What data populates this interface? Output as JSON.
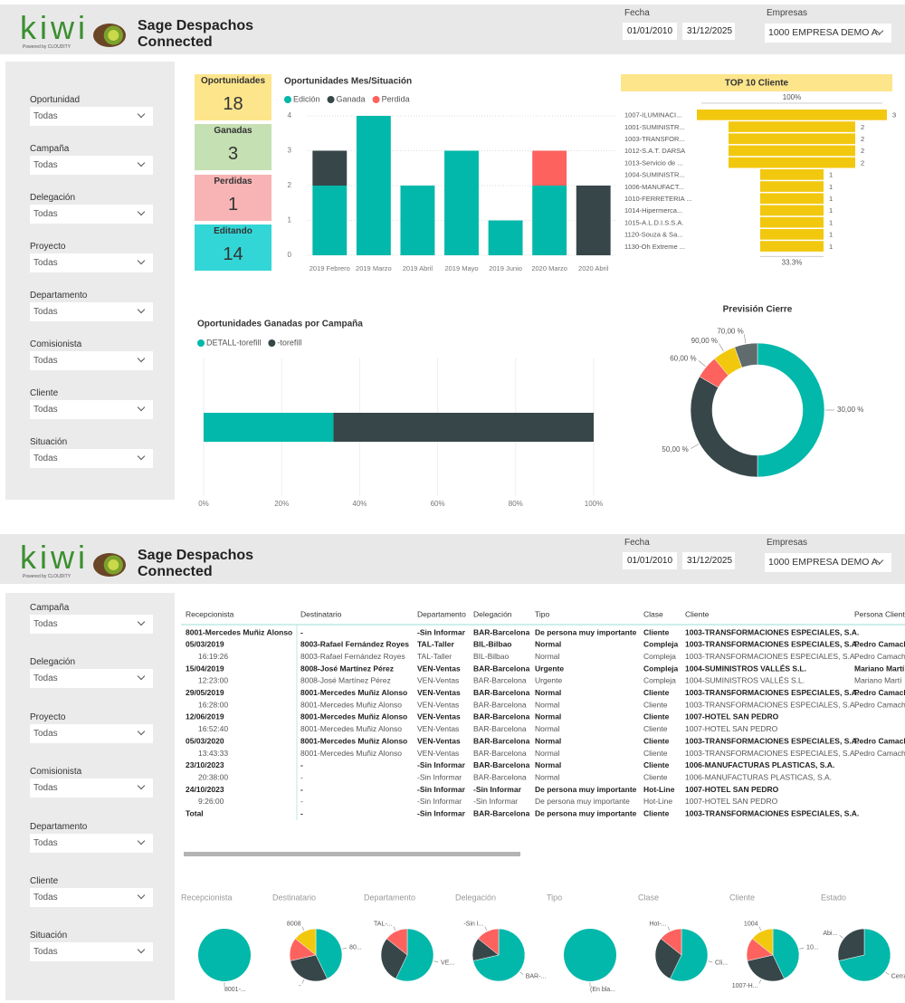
{
  "header": {
    "logo": "kiwi",
    "tagline": "Powered by CLOUDITY",
    "title": "Sage Despachos Connected",
    "date_label": "Fecha",
    "date_from": "01/01/2010",
    "date_to": "31/12/2025",
    "company_label": "Empresas",
    "company": "1000 EMPRESA DEMO A..."
  },
  "dashboard": {
    "filters": [
      {
        "label": "Oportunidad",
        "value": "Todas"
      },
      {
        "label": "Campaña",
        "value": "Todas"
      },
      {
        "label": "Delegación",
        "value": "Todas"
      },
      {
        "label": "Proyecto",
        "value": "Todas"
      },
      {
        "label": "Departamento",
        "value": "Todas"
      },
      {
        "label": "Comisionista",
        "value": "Todas"
      },
      {
        "label": "Cliente",
        "value": "Todas"
      },
      {
        "label": "Situación",
        "value": "Todas"
      }
    ],
    "kpis": [
      {
        "label": "Oportunidades",
        "value": 18,
        "color": "#fde58c"
      },
      {
        "label": "Ganadas",
        "value": 3,
        "color": "#c5e0b3"
      },
      {
        "label": "Perdidas",
        "value": 1,
        "color": "#f8b4b4"
      },
      {
        "label": "Editando",
        "value": 14,
        "color": "#33d6d6"
      }
    ]
  },
  "report": {
    "filters": [
      {
        "label": "Campaña",
        "value": "Todas"
      },
      {
        "label": "Delegación",
        "value": "Todas"
      },
      {
        "label": "Proyecto",
        "value": "Todas"
      },
      {
        "label": "Comisionista",
        "value": "Todas"
      },
      {
        "label": "Departamento",
        "value": "Todas"
      },
      {
        "label": "Cliente",
        "value": "Todas"
      },
      {
        "label": "Situación",
        "value": "Todas"
      }
    ],
    "table": {
      "columns": [
        "Recepcionista",
        "Destinatario",
        "Departamento",
        "Delegación",
        "Tipo",
        "Clase",
        "Cliente",
        "Persona Cliente"
      ],
      "rows": [
        {
          "bold": true,
          "cells": [
            "8001-Mercedes Muñiz Alonso",
            "-",
            "-Sin Informar",
            "BAR-Barcelona",
            "De persona muy importante",
            "Cliente",
            "1003-TRANSFORMACIONES ESPECIALES, S.A.",
            null
          ]
        },
        {
          "bold": true,
          "cells": [
            "05/03/2019",
            "8003-Rafael Fernández Royes",
            "TAL-Taller",
            "BIL-Bilbao",
            "Normal",
            "Compleja",
            "1003-TRANSFORMACIONES ESPECIALES, S.A.",
            "Pedro Camacho"
          ]
        },
        {
          "bold": false,
          "cells": [
            "16:19:26",
            "8003-Rafael Fernández Royes",
            "TAL-Taller",
            "BIL-Bilbao",
            "Normal",
            "Compleja",
            "1003-TRANSFORMACIONES ESPECIALES, S.A.",
            "Pedro Camacho"
          ]
        },
        {
          "bold": true,
          "cells": [
            "15/04/2019",
            "8008-José Martínez Pérez",
            "VEN-Ventas",
            "BAR-Barcelona",
            "Urgente",
            "Compleja",
            "1004-SUMINISTROS VALLÉS S.L.",
            "Mariano Martí"
          ]
        },
        {
          "bold": false,
          "cells": [
            "12:23:00",
            "8008-José Martínez Pérez",
            "VEN-Ventas",
            "BAR-Barcelona",
            "Urgente",
            "Compleja",
            "1004-SUMINISTROS VALLÉS S.L.",
            "Mariano Martí"
          ]
        },
        {
          "bold": true,
          "cells": [
            "29/05/2019",
            "8001-Mercedes Muñiz Alonso",
            "VEN-Ventas",
            "BAR-Barcelona",
            "Normal",
            "Cliente",
            "1003-TRANSFORMACIONES ESPECIALES, S.A.",
            "Pedro Camacho"
          ]
        },
        {
          "bold": false,
          "cells": [
            "16:28:00",
            "8001-Mercedes Muñiz Alonso",
            "VEN-Ventas",
            "BAR-Barcelona",
            "Normal",
            "Cliente",
            "1003-TRANSFORMACIONES ESPECIALES, S.A.",
            "Pedro Camacho"
          ]
        },
        {
          "bold": true,
          "cells": [
            "12/06/2019",
            "8001-Mercedes Muñiz Alonso",
            "VEN-Ventas",
            "BAR-Barcelona",
            "Normal",
            "Cliente",
            "1007-HOTEL SAN PEDRO",
            null
          ]
        },
        {
          "bold": false,
          "cells": [
            "16:52:40",
            "8001-Mercedes Muñiz Alonso",
            "VEN-Ventas",
            "BAR-Barcelona",
            "Normal",
            "Cliente",
            "1007-HOTEL SAN PEDRO",
            null
          ]
        },
        {
          "bold": true,
          "cells": [
            "05/03/2020",
            "8001-Mercedes Muñiz Alonso",
            "VEN-Ventas",
            "BAR-Barcelona",
            "Normal",
            "Cliente",
            "1003-TRANSFORMACIONES ESPECIALES, S.A.",
            "Pedro Camacho"
          ]
        },
        {
          "bold": false,
          "cells": [
            "13:43:33",
            "8001-Mercedes Muñiz Alonso",
            "VEN-Ventas",
            "BAR-Barcelona",
            "Normal",
            "Cliente",
            "1003-TRANSFORMACIONES ESPECIALES, S.A.",
            "Pedro Camacho"
          ]
        },
        {
          "bold": true,
          "cells": [
            "23/10/2023",
            "-",
            "-Sin Informar",
            "BAR-Barcelona",
            "Normal",
            "Cliente",
            "1006-MANUFACTURAS PLASTICAS, S.A.",
            null
          ]
        },
        {
          "bold": false,
          "cells": [
            "20:38:00",
            "-",
            "-Sin Informar",
            "BAR-Barcelona",
            "Normal",
            "Cliente",
            "1006-MANUFACTURAS PLASTICAS, S.A.",
            null
          ]
        },
        {
          "bold": true,
          "cells": [
            "24/10/2023",
            "-",
            "-Sin Informar",
            "-Sin Informar",
            "De persona muy importante",
            "Hot-Line",
            "1007-HOTEL SAN PEDRO",
            null
          ]
        },
        {
          "bold": false,
          "cells": [
            "9:26:00",
            "-",
            "-Sin Informar",
            "-Sin Informar",
            "De persona muy importante",
            "Hot-Line",
            "1007-HOTEL SAN PEDRO",
            null
          ]
        },
        {
          "bold": true,
          "cells": [
            "Total",
            "-",
            "-Sin Informar",
            "BAR-Barcelona",
            "De persona muy importante",
            "Cliente",
            "1003-TRANSFORMACIONES ESPECIALES, S.A.",
            null
          ]
        }
      ]
    }
  },
  "chart_data": [
    {
      "type": "bar",
      "stacked": true,
      "title": "Oportunidades Mes/Situación",
      "categories": [
        "2019 Febrero",
        "2019 Marzo",
        "2019 Abril",
        "2019 Mayo",
        "2019 Junio",
        "2020 Marzo",
        "2020 Abril"
      ],
      "series": [
        {
          "name": "Edición",
          "color": "#01b8aa",
          "values": [
            2,
            4,
            2,
            3,
            1,
            2,
            0
          ]
        },
        {
          "name": "Ganada",
          "color": "#374649",
          "values": [
            1,
            0,
            0,
            0,
            0,
            0,
            2
          ]
        },
        {
          "name": "Perdida",
          "color": "#fd625e",
          "values": [
            0,
            0,
            0,
            0,
            0,
            1,
            0
          ]
        }
      ],
      "ylim": [
        0,
        4
      ],
      "yticks": [
        0,
        1,
        2,
        3,
        4
      ],
      "grid": true
    },
    {
      "type": "funnel",
      "title": "TOP 10 Cliente",
      "color": "#f2c80f",
      "header_color": "#fde58c",
      "categories": [
        "1007-ILUMINACI...",
        "1001-SUMINISTR...",
        "1003-TRANSFOR...",
        "1012-S.A.T. DARSA",
        "1013-Servicio de ...",
        "1004-SUMINISTR...",
        "1006-MANUFACT...",
        "1010-FERRETERIA ...",
        "1014-Hipermerca...",
        "1015-A.L.D.I.S.S.A.",
        "1120-Souza & Sa...",
        "1130-Oh Extreme ..."
      ],
      "values": [
        3,
        2,
        2,
        2,
        2,
        1,
        1,
        1,
        1,
        1,
        1,
        1
      ],
      "top_label": "100%",
      "bottom_label": "33.3%"
    },
    {
      "type": "bar",
      "orientation": "horizontal",
      "stacked": true,
      "title": "Oportunidades Ganadas por Campaña",
      "categories": [
        null
      ],
      "series": [
        {
          "name": "DETALL-torefill",
          "color": "#01b8aa",
          "values": [
            33.3
          ]
        },
        {
          "name": "-torefill",
          "color": "#374649",
          "values": [
            66.7
          ]
        }
      ],
      "xlim": [
        0,
        100
      ],
      "xticks": [
        {
          "value": 0,
          "label": "0%"
        },
        {
          "value": 20,
          "label": "20%"
        },
        {
          "value": 40,
          "label": "40%"
        },
        {
          "value": 60,
          "label": "60%"
        },
        {
          "value": 80,
          "label": "80%"
        },
        {
          "value": 100,
          "label": "100%"
        }
      ],
      "grid": true
    },
    {
      "type": "pie",
      "donut": true,
      "title": "Previsión Cierre",
      "categories": [
        "30,00 %",
        "50,00 %",
        "60,00 %",
        "90,00 %",
        "70,00 %"
      ],
      "values": [
        9,
        6,
        1,
        1,
        1
      ],
      "colors": [
        "#01b8aa",
        "#374649",
        "#fd625e",
        "#f2c80f",
        "#5f6b6d"
      ]
    },
    {
      "type": "pie",
      "title": "Recepcionista",
      "categories": [
        "8001-..."
      ],
      "values": [
        7
      ],
      "colors": [
        "#01b8aa"
      ]
    },
    {
      "type": "pie",
      "title": "Destinatario",
      "categories": [
        "80...",
        "-",
        null,
        "8008"
      ],
      "values": [
        3,
        2,
        1,
        1
      ],
      "colors": [
        "#01b8aa",
        "#374649",
        "#fd625e",
        "#f2c80f"
      ]
    },
    {
      "type": "pie",
      "title": "Departamento",
      "categories": [
        "VE...",
        null,
        "TAL-..."
      ],
      "values": [
        4,
        2,
        1
      ],
      "colors": [
        "#01b8aa",
        "#374649",
        "#fd625e"
      ]
    },
    {
      "type": "pie",
      "title": "Delegación",
      "categories": [
        "BAR-...",
        null,
        "-Sin I..."
      ],
      "values": [
        5,
        1,
        1
      ],
      "colors": [
        "#01b8aa",
        "#374649",
        "#fd625e"
      ]
    },
    {
      "type": "pie",
      "title": "Tipo",
      "categories": [
        "(En bla..."
      ],
      "values": [
        7
      ],
      "colors": [
        "#01b8aa"
      ]
    },
    {
      "type": "pie",
      "title": "Clase",
      "categories": [
        "Cli...",
        null,
        "Hot-..."
      ],
      "values": [
        4,
        2,
        1
      ],
      "colors": [
        "#01b8aa",
        "#374649",
        "#fd625e"
      ]
    },
    {
      "type": "pie",
      "title": "Cliente",
      "categories": [
        "10...",
        "1007-H...",
        null,
        "1004"
      ],
      "values": [
        3,
        2,
        1,
        1
      ],
      "colors": [
        "#01b8aa",
        "#374649",
        "#fd625e",
        "#f2c80f"
      ]
    },
    {
      "type": "pie",
      "title": "Estado",
      "categories": [
        "Cerra...",
        "Abi..."
      ],
      "values": [
        5,
        2
      ],
      "colors": [
        "#01b8aa",
        "#374649"
      ]
    }
  ]
}
